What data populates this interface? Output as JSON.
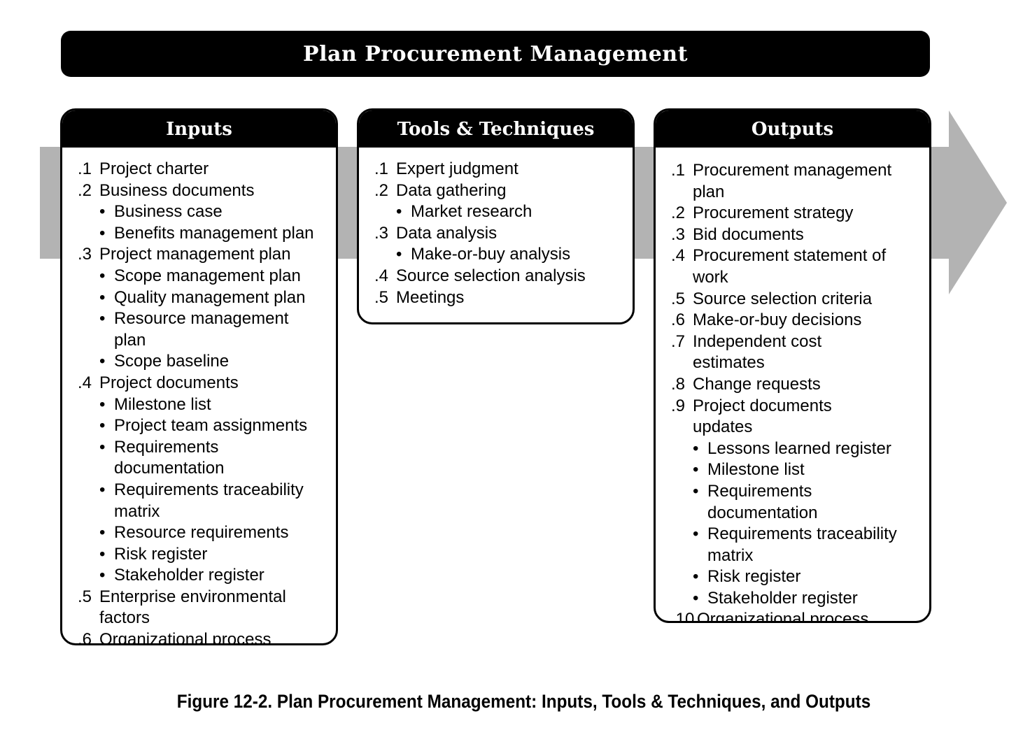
{
  "title": "Plan Procurement Management",
  "caption": "Figure 12-2. Plan Procurement Management: Inputs, Tools & Techniques, and Outputs",
  "colors": {
    "header_bg": "#000000",
    "header_text": "#ffffff",
    "arrow": "#b3b3b3",
    "box_border": "#000000"
  },
  "inputs": {
    "heading": "Inputs",
    "items": [
      {
        "num": ".1",
        "text": "Project charter",
        "subs": []
      },
      {
        "num": ".2",
        "text": "Business documents",
        "subs": [
          "Business case",
          "Benefits management plan"
        ]
      },
      {
        "num": ".3",
        "text": "Project management plan",
        "subs": [
          "Scope management plan",
          "Quality management plan",
          "Resource management plan",
          "Scope baseline"
        ]
      },
      {
        "num": ".4",
        "text": "Project documents",
        "subs": [
          "Milestone list",
          "Project team assignments",
          "Requirements documentation",
          "Requirements traceability matrix",
          "Resource requirements",
          "Risk register",
          "Stakeholder register"
        ]
      },
      {
        "num": ".5",
        "text": "Enterprise environmental factors",
        "subs": []
      },
      {
        "num": ".6",
        "text": "Organizational process assets",
        "subs": []
      }
    ]
  },
  "tools": {
    "heading": "Tools & Techniques",
    "items": [
      {
        "num": ".1",
        "text": "Expert judgment",
        "subs": []
      },
      {
        "num": ".2",
        "text": "Data gathering",
        "subs": [
          "Market research"
        ]
      },
      {
        "num": ".3",
        "text": "Data analysis",
        "subs": [
          "Make-or-buy analysis"
        ]
      },
      {
        "num": ".4",
        "text": "Source selection analysis",
        "subs": []
      },
      {
        "num": ".5",
        "text": "Meetings",
        "subs": []
      }
    ]
  },
  "outputs": {
    "heading": "Outputs",
    "items": [
      {
        "num": ".1",
        "text": "Procurement management plan",
        "subs": []
      },
      {
        "num": ".2",
        "text": "Procurement strategy",
        "subs": []
      },
      {
        "num": ".3",
        "text": "Bid documents",
        "subs": []
      },
      {
        "num": ".4",
        "text": "Procurement statement of work",
        "subs": []
      },
      {
        "num": ".5",
        "text": "Source selection criteria",
        "subs": []
      },
      {
        "num": ".6",
        "text": "Make-or-buy decisions",
        "subs": []
      },
      {
        "num": ".7",
        "text": "Independent cost estimates",
        "subs": []
      },
      {
        "num": ".8",
        "text": "Change requests",
        "subs": []
      },
      {
        "num": ".9",
        "text": "Project documents updates",
        "subs": [
          "Lessons learned register",
          "Milestone list",
          "Requirements documentation",
          "Requirements traceability matrix",
          "Risk register",
          "Stakeholder register"
        ]
      },
      {
        "num": ".10",
        "text": "Organizational process assets updates",
        "subs": []
      }
    ]
  }
}
